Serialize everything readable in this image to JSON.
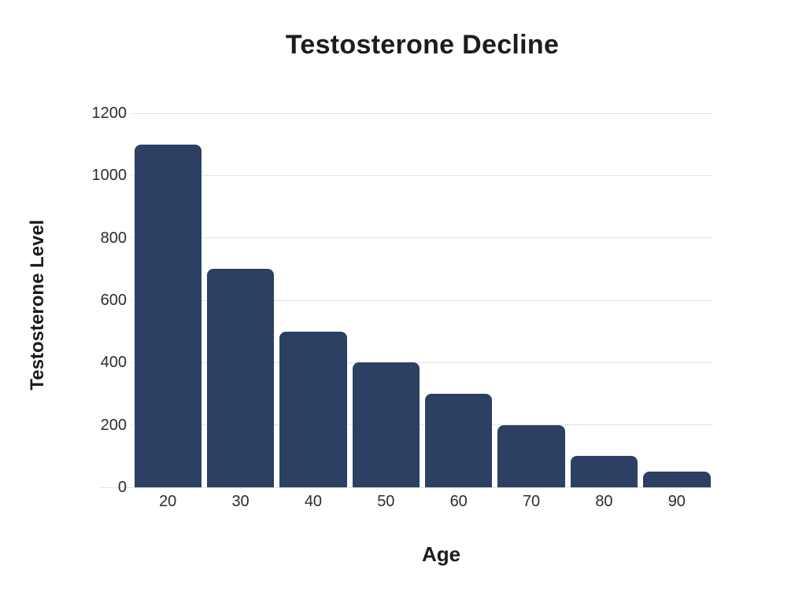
{
  "colors": {
    "background": "#ffffff",
    "bar": "#2b4062",
    "gridline": "#e2e2e2",
    "heading_text": "#1c1c1c",
    "tick_text": "#2d2d2d"
  },
  "chart_data": {
    "type": "bar",
    "title": "Testosterone Decline",
    "xlabel": "Age",
    "ylabel": "Testosterone Level",
    "categories": [
      "20",
      "30",
      "40",
      "50",
      "60",
      "70",
      "80",
      "90"
    ],
    "values": [
      1100,
      700,
      500,
      400,
      300,
      200,
      100,
      50
    ],
    "ylim": [
      0,
      1200
    ],
    "yticks": [
      0,
      200,
      400,
      600,
      800,
      1000,
      1200
    ],
    "grid": "horizontal",
    "legend": "none"
  }
}
